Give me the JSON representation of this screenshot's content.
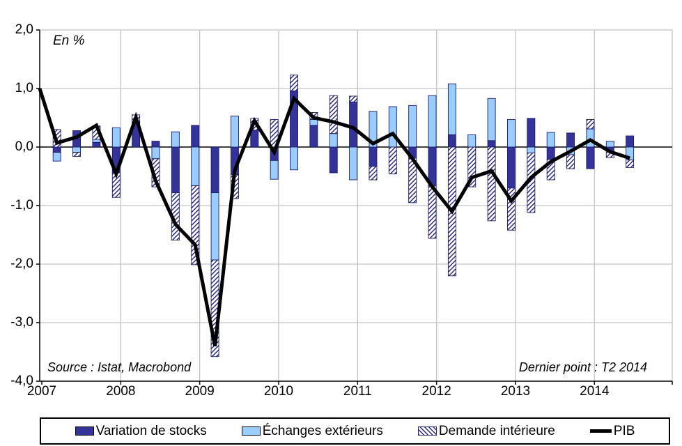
{
  "annotations": {
    "unit_label": "En %",
    "source": "Source : Istat, Macrobond",
    "last_point": "Dernier point : T2 2014"
  },
  "y_axis": {
    "tick_labels": [
      "2,0",
      "1,0",
      "0,0",
      "-1,0",
      "-2,0",
      "-3,0",
      "-4,0"
    ],
    "max": 2,
    "min": -4,
    "step": 1
  },
  "x_axis": {
    "tick_labels": [
      "2007",
      "2008",
      "2009",
      "2010",
      "2011",
      "2012",
      "2013",
      "2014"
    ]
  },
  "legend": {
    "items": [
      {
        "label": "Variation de stocks",
        "swatch": "solid-dark-blue"
      },
      {
        "label": "Échanges extérieurs",
        "swatch": "solid-light-blue"
      },
      {
        "label": "Demande intérieure",
        "swatch": "hatched"
      },
      {
        "label": "PIB",
        "swatch": "line"
      }
    ]
  },
  "colors": {
    "stocks": "#333399",
    "exchanges": "#99CCFF",
    "hatch_stripe": "#26267F",
    "pib_line": "#000000",
    "grid": "#C3C3C3",
    "axis": "#000000"
  },
  "chart_data": {
    "type": "bar",
    "subtype": "stacked bars with overlaid line, quarterly",
    "title": "",
    "xlabel": "",
    "ylabel": "En %",
    "ylim": [
      -4.0,
      2.0
    ],
    "grid": true,
    "legend_position": "bottom",
    "categories": [
      "T1 2007",
      "T2 2007",
      "T3 2007",
      "T4 2007",
      "T1 2008",
      "T2 2008",
      "T3 2008",
      "T4 2008",
      "T1 2009",
      "T2 2009",
      "T3 2009",
      "T4 2009",
      "T1 2010",
      "T2 2010",
      "T3 2010",
      "T4 2010",
      "T1 2011",
      "T2 2011",
      "T3 2011",
      "T4 2011",
      "T1 2012",
      "T2 2012",
      "T3 2012",
      "T4 2012",
      "T1 2013",
      "T2 2013",
      "T3 2013",
      "T4 2013",
      "T1 2014",
      "T2 2014"
    ],
    "series": [
      {
        "name": "Variation de stocks",
        "type": "bar",
        "values": [
          -0.09,
          0.28,
          0.08,
          -0.44,
          0.43,
          0.1,
          -0.78,
          0.37,
          -0.78,
          -0.47,
          0.29,
          -0.23,
          0.96,
          0.37,
          -0.44,
          0.77,
          -0.33,
          0.0,
          -0.19,
          -0.66,
          0.21,
          0.0,
          0.11,
          -0.7,
          0.49,
          -0.21,
          0.24,
          -0.37,
          -0.05,
          0.19
        ]
      },
      {
        "name": "Échanges extérieurs",
        "type": "bar",
        "values": [
          -0.15,
          -0.09,
          0.05,
          0.33,
          0.0,
          -0.2,
          0.26,
          -0.66,
          -1.15,
          0.53,
          0.0,
          -0.32,
          -0.39,
          0.1,
          0.23,
          -0.56,
          0.61,
          0.69,
          0.71,
          0.88,
          0.87,
          0.21,
          0.72,
          0.47,
          -0.1,
          0.25,
          -0.13,
          0.31,
          0.1,
          -0.22
        ]
      },
      {
        "name": "Demande intérieure",
        "type": "bar",
        "values": [
          0.3,
          -0.07,
          0.23,
          -0.42,
          0.12,
          -0.48,
          -0.81,
          -1.35,
          -1.65,
          -0.41,
          0.2,
          0.47,
          0.27,
          0.12,
          0.65,
          0.1,
          -0.23,
          -0.46,
          -0.76,
          -0.9,
          -2.2,
          -0.68,
          -1.26,
          -0.72,
          -1.02,
          -0.35,
          -0.24,
          0.16,
          -0.13,
          -0.13
        ]
      },
      {
        "name": "PIB",
        "type": "line",
        "pre_point": 1.0,
        "values": [
          0.07,
          0.17,
          0.37,
          -0.46,
          0.51,
          -0.58,
          -1.32,
          -1.67,
          -3.4,
          -0.4,
          0.45,
          -0.09,
          0.83,
          0.5,
          0.43,
          0.33,
          0.06,
          0.23,
          -0.2,
          -0.68,
          -1.1,
          -0.52,
          -0.41,
          -0.92,
          -0.52,
          -0.25,
          -0.07,
          0.12,
          -0.08,
          -0.19
        ]
      }
    ]
  }
}
